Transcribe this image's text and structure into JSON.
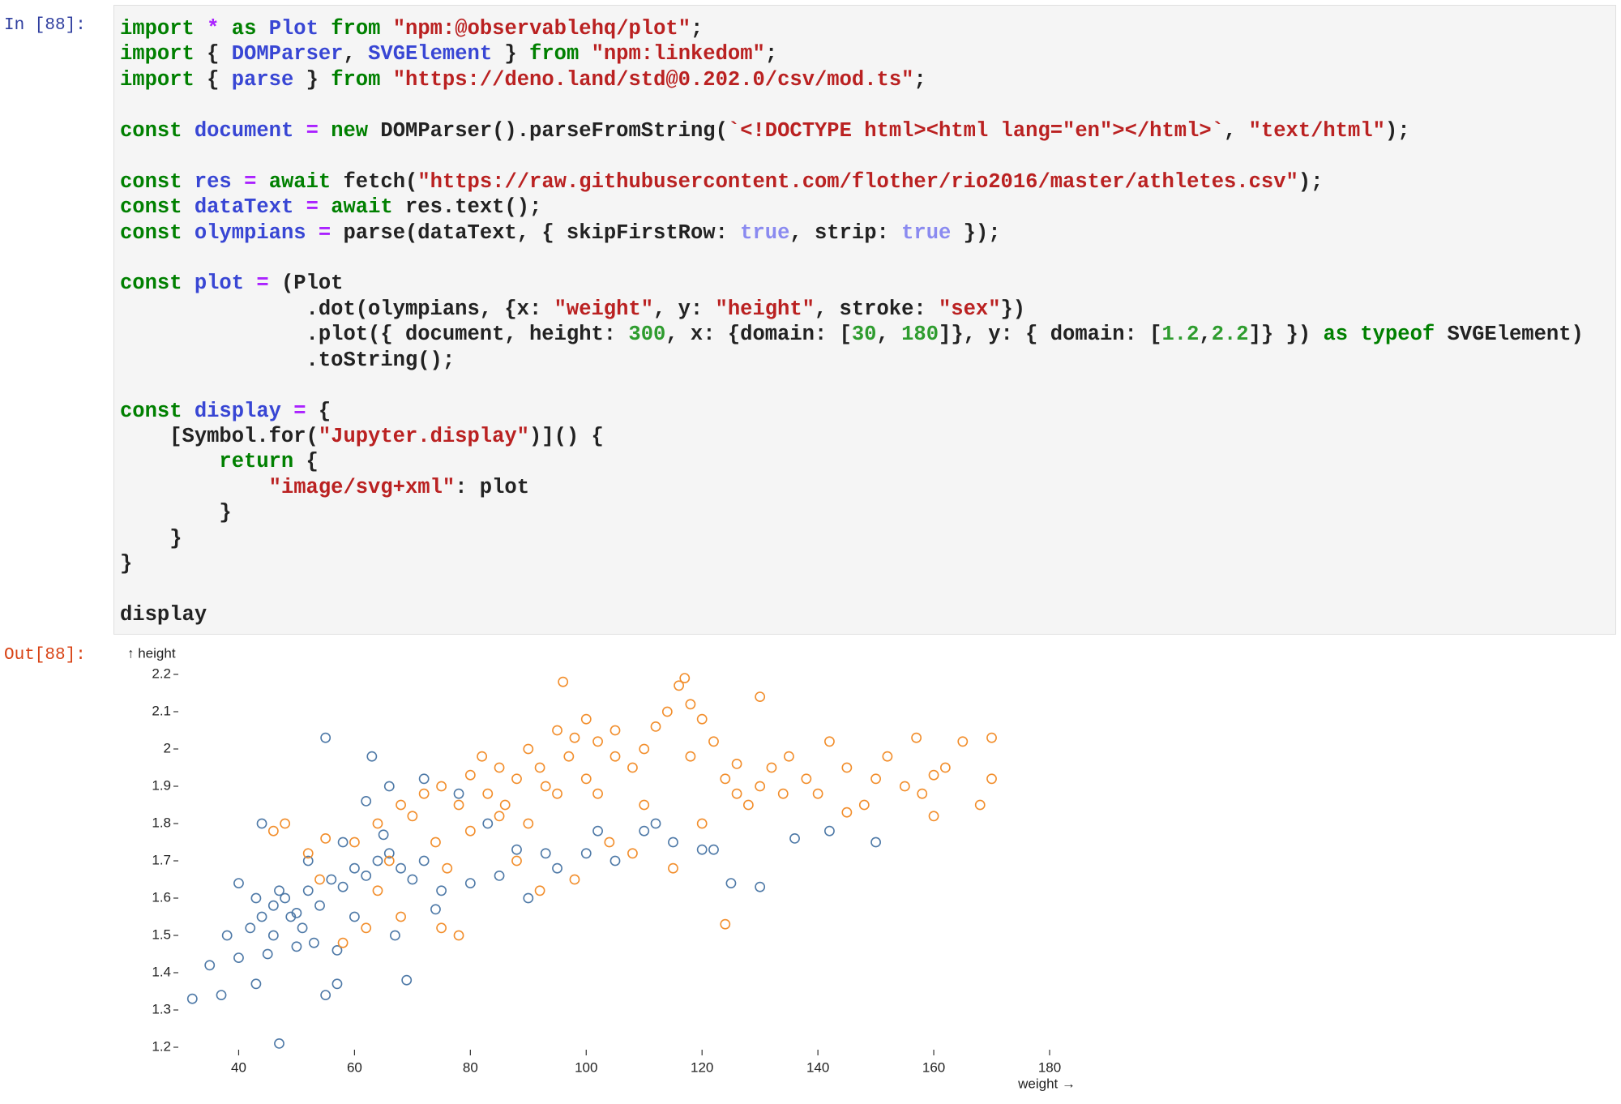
{
  "prompts": {
    "input": "In [88]:",
    "output": "Out[88]:"
  },
  "code": {
    "lines": [
      [
        [
          "import",
          "#008000"
        ],
        " ",
        [
          "*",
          "#aa22ff"
        ],
        " ",
        [
          "as",
          "#008000"
        ],
        " ",
        [
          "Plot",
          "#3846d4"
        ],
        " ",
        [
          "from",
          "#008000"
        ],
        " ",
        [
          "\"npm:@observablehq/plot\"",
          "#ba2121"
        ],
        ";"
      ],
      [
        [
          "import",
          "#008000"
        ],
        " { ",
        [
          "DOMParser",
          "#3846d4"
        ],
        ", ",
        [
          "SVGElement",
          "#3846d4"
        ],
        " } ",
        [
          "from",
          "#008000"
        ],
        " ",
        [
          "\"npm:linkedom\"",
          "#ba2121"
        ],
        ";"
      ],
      [
        [
          "import",
          "#008000"
        ],
        " { ",
        [
          "parse",
          "#3846d4"
        ],
        " } ",
        [
          "from",
          "#008000"
        ],
        " ",
        [
          "\"https://deno.land/std@0.202.0/csv/mod.ts\"",
          "#ba2121"
        ],
        ";"
      ],
      [],
      [
        [
          "const",
          "#008000"
        ],
        " ",
        [
          "document",
          "#3846d4"
        ],
        " ",
        [
          "=",
          "#aa22ff"
        ],
        " ",
        [
          "new",
          "#008000"
        ],
        " DOMParser().parseFromString(",
        [
          "`<!DOCTYPE html><html lang=\"en\"></html>`",
          "#ba2121"
        ],
        ", ",
        [
          "\"text/html\"",
          "#ba2121"
        ],
        ");"
      ],
      [],
      [
        [
          "const",
          "#008000"
        ],
        " ",
        [
          "res",
          "#3846d4"
        ],
        " ",
        [
          "=",
          "#aa22ff"
        ],
        " ",
        [
          "await",
          "#008000"
        ],
        " fetch(",
        [
          "\"https://raw.githubusercontent.com/flother/rio2016/master/athletes.csv\"",
          "#ba2121"
        ],
        ");"
      ],
      [
        [
          "const",
          "#008000"
        ],
        " ",
        [
          "dataText",
          "#3846d4"
        ],
        " ",
        [
          "=",
          "#aa22ff"
        ],
        " ",
        [
          "await",
          "#008000"
        ],
        " res.text();"
      ],
      [
        [
          "const",
          "#008000"
        ],
        " ",
        [
          "olympians",
          "#3846d4"
        ],
        " ",
        [
          "=",
          "#aa22ff"
        ],
        " parse(dataText, { skipFirstRow: ",
        [
          "true",
          "#8a8af0"
        ],
        ", strip: ",
        [
          "true",
          "#8a8af0"
        ],
        " });"
      ],
      [],
      [
        [
          "const",
          "#008000"
        ],
        " ",
        [
          "plot",
          "#3846d4"
        ],
        " ",
        [
          "=",
          "#aa22ff"
        ],
        " (Plot"
      ],
      [
        "               .dot(olympians, {x: ",
        [
          "\"weight\"",
          "#ba2121"
        ],
        ", y: ",
        [
          "\"height\"",
          "#ba2121"
        ],
        ", stroke: ",
        [
          "\"sex\"",
          "#ba2121"
        ],
        "})"
      ],
      [
        "               .plot({ document, height: ",
        [
          "300",
          "#2e9c2e"
        ],
        ", x: {domain: [",
        [
          "30",
          "#2e9c2e"
        ],
        ", ",
        [
          "180",
          "#2e9c2e"
        ],
        "]}, y: { domain: [",
        [
          "1.2",
          "#2e9c2e"
        ],
        ",",
        [
          "2.2",
          "#2e9c2e"
        ],
        "]} }) ",
        [
          "as typeof",
          "#008000"
        ],
        " SVGElement)"
      ],
      [
        "               .toString();"
      ],
      [],
      [
        [
          "const",
          "#008000"
        ],
        " ",
        [
          "display",
          "#3846d4"
        ],
        " ",
        [
          "=",
          "#aa22ff"
        ],
        " {"
      ],
      [
        "    [Symbol.for(",
        [
          "\"Jupyter.display\"",
          "#ba2121"
        ],
        ")]() {"
      ],
      [
        "        ",
        [
          "return",
          "#008000"
        ],
        " {"
      ],
      [
        "            ",
        [
          "\"image/svg+xml\"",
          "#ba2121"
        ],
        ": plot"
      ],
      [
        "        }"
      ],
      [
        "    }"
      ],
      [
        "}"
      ],
      [],
      [
        "display"
      ]
    ]
  },
  "chart_data": {
    "type": "scatter",
    "y_label": "↑ height",
    "x_label": "weight →",
    "xlim": [
      30,
      180
    ],
    "xticks": [
      40,
      60,
      80,
      100,
      120,
      140,
      160,
      180
    ],
    "ylim": [
      1.2,
      2.2
    ],
    "yticks": [
      1.2,
      1.3,
      1.4,
      1.5,
      1.6,
      1.7,
      1.8,
      1.9,
      2.0,
      2.1,
      2.2
    ],
    "grid": false,
    "series": [
      {
        "color": "#4e79a7",
        "x": [
          47,
          32,
          37,
          43,
          55,
          69,
          57,
          35,
          40,
          45,
          50,
          38,
          42,
          44,
          46,
          48,
          50,
          52,
          54,
          56,
          58,
          60,
          62,
          64,
          66,
          68,
          70,
          72,
          75,
          80,
          85,
          90,
          95,
          100,
          105,
          110,
          115,
          120,
          125,
          130,
          122,
          136,
          142,
          150,
          44,
          47,
          51,
          53,
          58,
          62,
          66,
          72,
          78,
          63,
          55,
          49,
          43,
          46,
          60,
          88,
          102,
          93,
          67,
          74,
          40,
          52,
          57,
          65,
          83,
          112
        ],
        "y": [
          1.21,
          1.33,
          1.34,
          1.37,
          1.34,
          1.38,
          1.37,
          1.42,
          1.44,
          1.45,
          1.47,
          1.5,
          1.52,
          1.55,
          1.58,
          1.6,
          1.56,
          1.62,
          1.58,
          1.65,
          1.63,
          1.68,
          1.66,
          1.7,
          1.72,
          1.68,
          1.65,
          1.7,
          1.62,
          1.64,
          1.66,
          1.6,
          1.68,
          1.72,
          1.7,
          1.78,
          1.75,
          1.73,
          1.64,
          1.63,
          1.73,
          1.76,
          1.78,
          1.75,
          1.8,
          1.62,
          1.52,
          1.48,
          1.75,
          1.86,
          1.9,
          1.92,
          1.88,
          1.98,
          2.03,
          1.55,
          1.6,
          1.5,
          1.55,
          1.73,
          1.78,
          1.72,
          1.5,
          1.57,
          1.64,
          1.7,
          1.46,
          1.77,
          1.8,
          1.8
        ]
      },
      {
        "color": "#f28e2c",
        "x": [
          46,
          48,
          52,
          55,
          58,
          62,
          68,
          75,
          78,
          54,
          60,
          64,
          68,
          70,
          72,
          75,
          78,
          80,
          82,
          85,
          88,
          90,
          92,
          95,
          97,
          100,
          102,
          105,
          108,
          110,
          112,
          114,
          116,
          118,
          120,
          122,
          124,
          126,
          128,
          130,
          132,
          135,
          138,
          140,
          142,
          145,
          148,
          150,
          152,
          155,
          158,
          160,
          162,
          165,
          170,
          170,
          168,
          160,
          157,
          145,
          130,
          117,
          96,
          86,
          80,
          74,
          66,
          88,
          92,
          98,
          104,
          110,
          95,
          85,
          100,
          105,
          90,
          76,
          64,
          124,
          115,
          108,
          120,
          102,
          98,
          93,
          83,
          118,
          126,
          134
        ],
        "y": [
          1.78,
          1.8,
          1.72,
          1.76,
          1.48,
          1.52,
          1.55,
          1.52,
          1.5,
          1.65,
          1.75,
          1.8,
          1.85,
          1.82,
          1.88,
          1.9,
          1.85,
          1.93,
          1.98,
          1.95,
          1.92,
          2.0,
          1.95,
          2.05,
          1.98,
          2.08,
          2.02,
          2.05,
          1.95,
          2.0,
          2.06,
          2.1,
          2.17,
          2.12,
          2.08,
          2.02,
          1.92,
          1.88,
          1.85,
          1.9,
          1.95,
          1.98,
          1.92,
          1.88,
          2.02,
          1.95,
          1.85,
          1.92,
          1.98,
          1.9,
          1.88,
          1.93,
          1.95,
          2.02,
          1.92,
          2.03,
          1.85,
          1.82,
          2.03,
          1.83,
          2.14,
          2.19,
          2.18,
          1.85,
          1.78,
          1.75,
          1.7,
          1.7,
          1.62,
          1.65,
          1.75,
          1.85,
          1.88,
          1.82,
          1.92,
          1.98,
          1.8,
          1.68,
          1.62,
          1.53,
          1.68,
          1.72,
          1.8,
          1.88,
          2.03,
          1.9,
          1.88,
          1.98,
          1.96,
          1.88
        ]
      }
    ]
  }
}
